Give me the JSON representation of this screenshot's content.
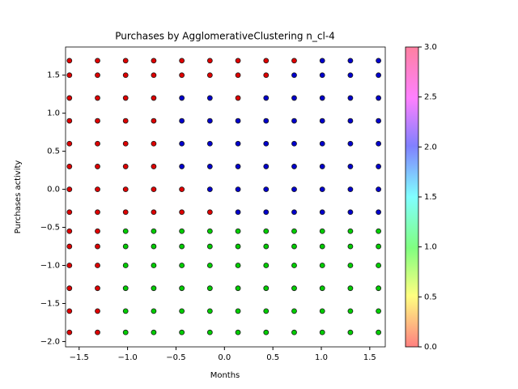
{
  "chart_data": {
    "type": "scatter",
    "title": "Purchases by AgglomerativeClustering n_cl-4",
    "x_label": "Months",
    "y_label": "Purchases activity",
    "xlim": [
      -1.64,
      1.66
    ],
    "ylim": [
      -2.07,
      1.87
    ],
    "xticks": [
      {
        "value": -1.5,
        "label": "−1.5"
      },
      {
        "value": -1.0,
        "label": "−1.0"
      },
      {
        "value": -0.5,
        "label": "−0.5"
      },
      {
        "value": 0,
        "label": "0.0"
      },
      0.5,
      {
        "value": 1,
        "label": "1.0"
      },
      1.5
    ],
    "yticks": [
      {
        "value": -2,
        "label": "−2.0"
      },
      {
        "value": -1.5,
        "label": "−1.5"
      },
      {
        "value": -1,
        "label": "−1.0"
      },
      {
        "value": -0.5,
        "label": "−0.5"
      },
      {
        "value": 0,
        "label": "0.0"
      },
      0.5,
      {
        "value": 1,
        "label": "1.0"
      },
      1.5
    ],
    "edgecolor": "#1a1a1a",
    "series": [
      {
        "color": "#dd0000",
        "x": [
          -1.6,
          -1.6,
          -1.6,
          -1.6,
          -1.6,
          -1.6,
          -1.6,
          -1.6,
          -1.6,
          -1.6,
          -1.6,
          -1.6,
          -1.6,
          -1.6,
          -1.31,
          -1.31,
          -1.31,
          -1.31,
          -1.31,
          -1.31,
          -1.31,
          -1.31,
          -1.31,
          -1.31,
          -1.31,
          -1.31,
          -1.31,
          -1.31,
          -1.02,
          -1.02,
          -1.02,
          -1.02,
          -1.02,
          -1.02,
          -1.02,
          -1.02,
          -0.73,
          -0.73,
          -0.73,
          -0.73,
          -0.73,
          -0.73,
          -0.73,
          -0.73,
          -0.44,
          -0.44,
          -0.44,
          -0.44,
          -0.15,
          -0.15,
          -0.15,
          0.14,
          0.14,
          0.14,
          0.43,
          0.43,
          0.72
        ],
        "values": [
          -1.88,
          -1.6,
          -1.3,
          -1.0,
          -0.75,
          -0.55,
          -0.3,
          0.0,
          0.3,
          0.6,
          0.9,
          1.2,
          1.5,
          1.69,
          -1.88,
          -1.6,
          -1.3,
          -1.0,
          -0.75,
          -0.55,
          -0.3,
          0.0,
          0.3,
          0.6,
          0.9,
          1.2,
          1.5,
          1.69,
          -0.3,
          0.0,
          0.3,
          0.6,
          0.9,
          1.2,
          1.5,
          1.69,
          -0.3,
          0.0,
          0.3,
          0.6,
          0.9,
          1.2,
          1.5,
          1.69,
          -0.3,
          0.0,
          1.5,
          1.69,
          -0.3,
          1.5,
          1.69,
          1.2,
          1.5,
          1.69,
          1.5,
          1.69,
          1.69
        ]
      },
      {
        "color": "#00cc00",
        "x": [
          -1.02,
          -1.02,
          -1.02,
          -1.02,
          -1.02,
          -1.02,
          -0.73,
          -0.73,
          -0.73,
          -0.73,
          -0.73,
          -0.73,
          -0.44,
          -0.44,
          -0.44,
          -0.44,
          -0.44,
          -0.44,
          -0.15,
          -0.15,
          -0.15,
          -0.15,
          -0.15,
          -0.15,
          0.14,
          0.14,
          0.14,
          0.14,
          0.14,
          0.14,
          0.43,
          0.43,
          0.43,
          0.43,
          0.43,
          0.43,
          0.72,
          0.72,
          0.72,
          0.72,
          0.72,
          0.72,
          1.01,
          1.01,
          1.01,
          1.01,
          1.01,
          1.01,
          1.3,
          1.3,
          1.3,
          1.3,
          1.3,
          1.3,
          1.59,
          1.59,
          1.59,
          1.59,
          1.59,
          1.59
        ],
        "values": [
          -1.88,
          -1.6,
          -1.3,
          -1.0,
          -0.75,
          -0.55,
          -1.88,
          -1.6,
          -1.3,
          -1.0,
          -0.75,
          -0.55,
          -1.88,
          -1.6,
          -1.3,
          -1.0,
          -0.75,
          -0.55,
          -1.88,
          -1.6,
          -1.3,
          -1.0,
          -0.75,
          -0.55,
          -1.88,
          -1.6,
          -1.3,
          -1.0,
          -0.75,
          -0.55,
          -1.88,
          -1.6,
          -1.3,
          -1.0,
          -0.75,
          -0.55,
          -1.88,
          -1.6,
          -1.3,
          -1.0,
          -0.75,
          -0.55,
          -1.88,
          -1.6,
          -1.3,
          -1.0,
          -0.75,
          -0.55,
          -1.88,
          -1.6,
          -1.3,
          -1.0,
          -0.75,
          -0.55,
          -1.88,
          -1.6,
          -1.3,
          -1.0,
          -0.75,
          -0.55
        ]
      },
      {
        "color": "#0000cc",
        "x": [
          -0.44,
          -0.44,
          -0.44,
          -0.44,
          -0.15,
          -0.15,
          -0.15,
          -0.15,
          -0.15,
          0.14,
          0.14,
          0.14,
          0.14,
          0.14,
          0.43,
          0.43,
          0.43,
          0.43,
          0.43,
          0.43,
          0.72,
          0.72,
          0.72,
          0.72,
          0.72,
          0.72,
          0.72,
          1.01,
          1.01,
          1.01,
          1.01,
          1.01,
          1.01,
          1.01,
          1.01,
          1.3,
          1.3,
          1.3,
          1.3,
          1.3,
          1.3,
          1.3,
          1.3,
          1.59,
          1.59,
          1.59,
          1.59,
          1.59,
          1.59,
          1.59,
          1.59
        ],
        "values": [
          0.3,
          0.6,
          0.9,
          1.2,
          0.0,
          0.3,
          0.6,
          0.9,
          1.2,
          -0.3,
          0.0,
          0.3,
          0.6,
          0.9,
          -0.3,
          0.0,
          0.3,
          0.6,
          0.9,
          1.2,
          -0.3,
          0.0,
          0.3,
          0.6,
          0.9,
          1.2,
          1.5,
          -0.3,
          0.0,
          0.3,
          0.6,
          0.9,
          1.2,
          1.5,
          1.69,
          -0.3,
          0.0,
          0.3,
          0.6,
          0.9,
          1.2,
          1.5,
          1.69,
          -0.3,
          0.0,
          0.3,
          0.6,
          0.9,
          1.2,
          1.5,
          1.69
        ]
      }
    ],
    "colorbar": {
      "lim": [
        0,
        3
      ],
      "ticks": [
        {
          "value": 0,
          "label": "0.0"
        },
        0.5,
        {
          "value": 1,
          "label": "1.0"
        },
        1.5,
        {
          "value": 2,
          "label": "2.0"
        },
        2.5,
        {
          "value": 3,
          "label": "3.0"
        }
      ]
    }
  }
}
